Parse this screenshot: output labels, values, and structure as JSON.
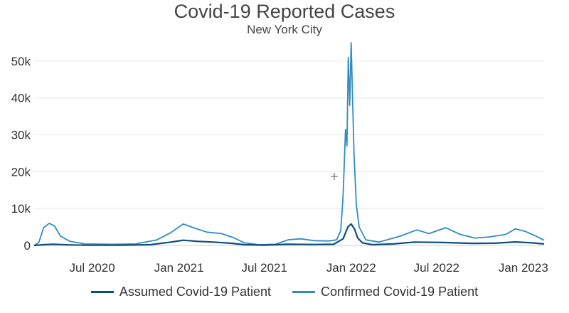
{
  "title": "Covid-19 Reported Cases",
  "subtitle": "New York City",
  "colors": {
    "assumed": "#0d4d80",
    "confirmed": "#2f8cc4",
    "grid": "#e6e6e6"
  },
  "chart_data": {
    "type": "line",
    "title": "Covid-19 Reported Cases",
    "subtitle": "New York City",
    "xlabel": "",
    "ylabel": "",
    "y_ticks": [
      0,
      10000,
      20000,
      30000,
      40000,
      50000
    ],
    "y_tick_labels": [
      "0",
      "10k",
      "20k",
      "30k",
      "40k",
      "50k"
    ],
    "ylim": [
      0,
      55000
    ],
    "xlim": [
      "2020-02-29",
      "2023-02-14"
    ],
    "x_ticks": [
      "2020-07-01",
      "2021-01-01",
      "2021-07-01",
      "2022-01-01",
      "2022-07-01",
      "2023-01-01"
    ],
    "x_tick_labels": [
      "Jul 2020",
      "Jan 2021",
      "Jul 2021",
      "Jan 2022",
      "Jul 2022",
      "Jan 2023"
    ],
    "grid": true,
    "legend_position": "bottom",
    "series": [
      {
        "name": "Assumed Covid-19 Patient",
        "color": "#0d4d80",
        "points": [
          [
            "2020-02-29",
            0
          ],
          [
            "2020-03-20",
            200
          ],
          [
            "2020-04-10",
            300
          ],
          [
            "2020-05-10",
            150
          ],
          [
            "2020-06-15",
            50
          ],
          [
            "2020-09-01",
            50
          ],
          [
            "2020-11-01",
            200
          ],
          [
            "2020-12-15",
            900
          ],
          [
            "2021-01-10",
            1400
          ],
          [
            "2021-02-10",
            1100
          ],
          [
            "2021-03-15",
            900
          ],
          [
            "2021-04-20",
            600
          ],
          [
            "2021-05-20",
            200
          ],
          [
            "2021-07-01",
            80
          ],
          [
            "2021-08-20",
            300
          ],
          [
            "2021-10-15",
            250
          ],
          [
            "2021-11-25",
            300
          ],
          [
            "2021-12-15",
            1800
          ],
          [
            "2021-12-25",
            5000
          ],
          [
            "2022-01-01",
            5800
          ],
          [
            "2022-01-08",
            4500
          ],
          [
            "2022-01-15",
            2000
          ],
          [
            "2022-01-25",
            700
          ],
          [
            "2022-02-15",
            200
          ],
          [
            "2022-04-01",
            400
          ],
          [
            "2022-05-15",
            900
          ],
          [
            "2022-07-15",
            800
          ],
          [
            "2022-09-15",
            550
          ],
          [
            "2022-11-01",
            600
          ],
          [
            "2022-12-15",
            950
          ],
          [
            "2023-01-20",
            700
          ],
          [
            "2023-02-14",
            400
          ]
        ]
      },
      {
        "name": "Confirmed Covid-19 Patient",
        "color": "#2f8cc4",
        "points": [
          [
            "2020-02-29",
            0
          ],
          [
            "2020-03-10",
            800
          ],
          [
            "2020-03-20",
            4800
          ],
          [
            "2020-04-01",
            6000
          ],
          [
            "2020-04-12",
            5300
          ],
          [
            "2020-04-25",
            2500
          ],
          [
            "2020-05-15",
            1100
          ],
          [
            "2020-06-15",
            400
          ],
          [
            "2020-08-15",
            300
          ],
          [
            "2020-10-01",
            400
          ],
          [
            "2020-11-15",
            1500
          ],
          [
            "2020-12-15",
            3500
          ],
          [
            "2021-01-10",
            5800
          ],
          [
            "2021-02-01",
            4800
          ],
          [
            "2021-03-01",
            3600
          ],
          [
            "2021-04-01",
            3200
          ],
          [
            "2021-04-25",
            2200
          ],
          [
            "2021-05-20",
            700
          ],
          [
            "2021-06-20",
            200
          ],
          [
            "2021-07-25",
            300
          ],
          [
            "2021-08-20",
            1500
          ],
          [
            "2021-09-15",
            1800
          ],
          [
            "2021-10-15",
            1300
          ],
          [
            "2021-11-15",
            1200
          ],
          [
            "2021-12-01",
            1500
          ],
          [
            "2021-12-10",
            4000
          ],
          [
            "2021-12-15",
            13500
          ],
          [
            "2021-12-20",
            31500
          ],
          [
            "2021-12-23",
            27000
          ],
          [
            "2021-12-26",
            51000
          ],
          [
            "2021-12-29",
            38000
          ],
          [
            "2022-01-01",
            55000
          ],
          [
            "2022-01-04",
            40000
          ],
          [
            "2022-01-07",
            25000
          ],
          [
            "2022-01-12",
            11000
          ],
          [
            "2022-01-18",
            5000
          ],
          [
            "2022-02-01",
            1500
          ],
          [
            "2022-03-01",
            900
          ],
          [
            "2022-04-15",
            2500
          ],
          [
            "2022-05-20",
            4200
          ],
          [
            "2022-06-15",
            3200
          ],
          [
            "2022-07-20",
            4800
          ],
          [
            "2022-08-20",
            3000
          ],
          [
            "2022-09-20",
            2000
          ],
          [
            "2022-10-20",
            2300
          ],
          [
            "2022-11-25",
            3000
          ],
          [
            "2022-12-15",
            4500
          ],
          [
            "2023-01-05",
            3800
          ],
          [
            "2023-01-25",
            2700
          ],
          [
            "2023-02-14",
            1400
          ]
        ]
      }
    ]
  }
}
